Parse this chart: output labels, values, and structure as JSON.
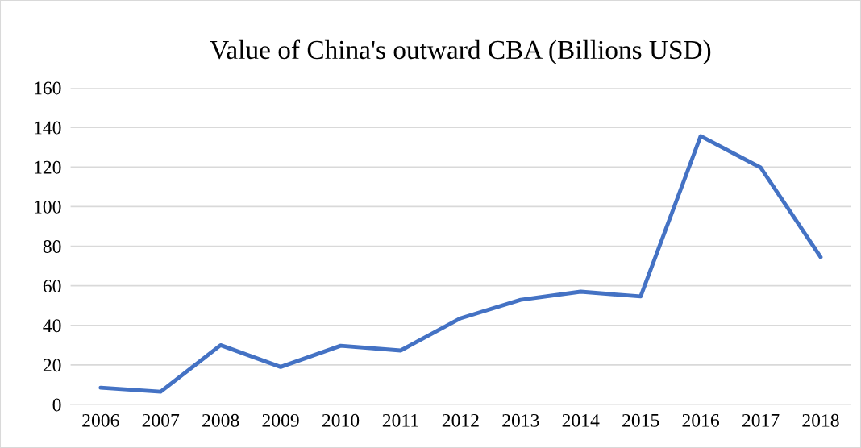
{
  "chart_data": {
    "type": "line",
    "title": "Value of China's outward CBA (Billions USD)",
    "categories": [
      "2006",
      "2007",
      "2008",
      "2009",
      "2010",
      "2011",
      "2012",
      "2013",
      "2014",
      "2015",
      "2016",
      "2017",
      "2018"
    ],
    "series": [
      {
        "color": "#4472c4",
        "values": [
          8.5,
          6.5,
          30,
          19,
          29.7,
          27.3,
          43.6,
          52.9,
          57,
          54.6,
          135.6,
          119.7,
          74.5
        ]
      }
    ],
    "ylim": [
      0,
      160
    ],
    "yticks": [
      0,
      20,
      40,
      60,
      80,
      100,
      120,
      140,
      160
    ],
    "grid": "y",
    "marker": "none",
    "line_style": "solid"
  }
}
